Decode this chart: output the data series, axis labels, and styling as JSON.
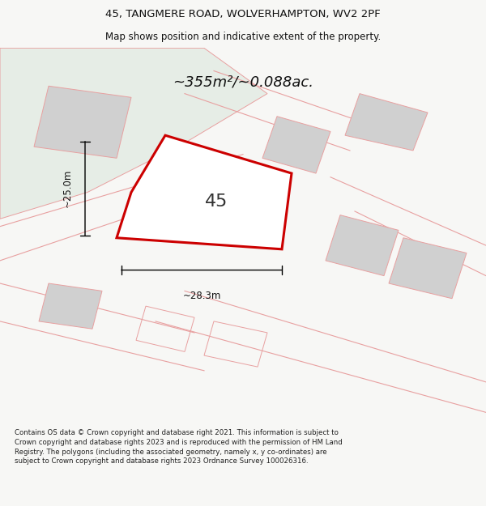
{
  "title_line1": "45, TANGMERE ROAD, WOLVERHAMPTON, WV2 2PF",
  "title_line2": "Map shows position and indicative extent of the property.",
  "area_text": "~355m²/~0.088ac.",
  "plot_number": "45",
  "dim_width": "~28.3m",
  "dim_height": "~25.0m",
  "bg_color": "#f7f7f5",
  "map_bg": "#ffffff",
  "footer_text": "Contains OS data © Crown copyright and database right 2021. This information is subject to Crown copyright and database rights 2023 and is reproduced with the permission of HM Land Registry. The polygons (including the associated geometry, namely x, y co-ordinates) are subject to Crown copyright and database rights 2023 Ordnance Survey 100026316.",
  "plot_line_color": "#cc0000",
  "map_line_color": "#e8a0a0",
  "green_fill": "#e6ede6",
  "gray_fill": "#d0d0d0",
  "title_fontsize": 9.5,
  "subtitle_fontsize": 8.5,
  "area_fontsize": 13,
  "plot_label_fontsize": 16,
  "dim_fontsize": 8.5,
  "footer_fontsize": 6.2
}
